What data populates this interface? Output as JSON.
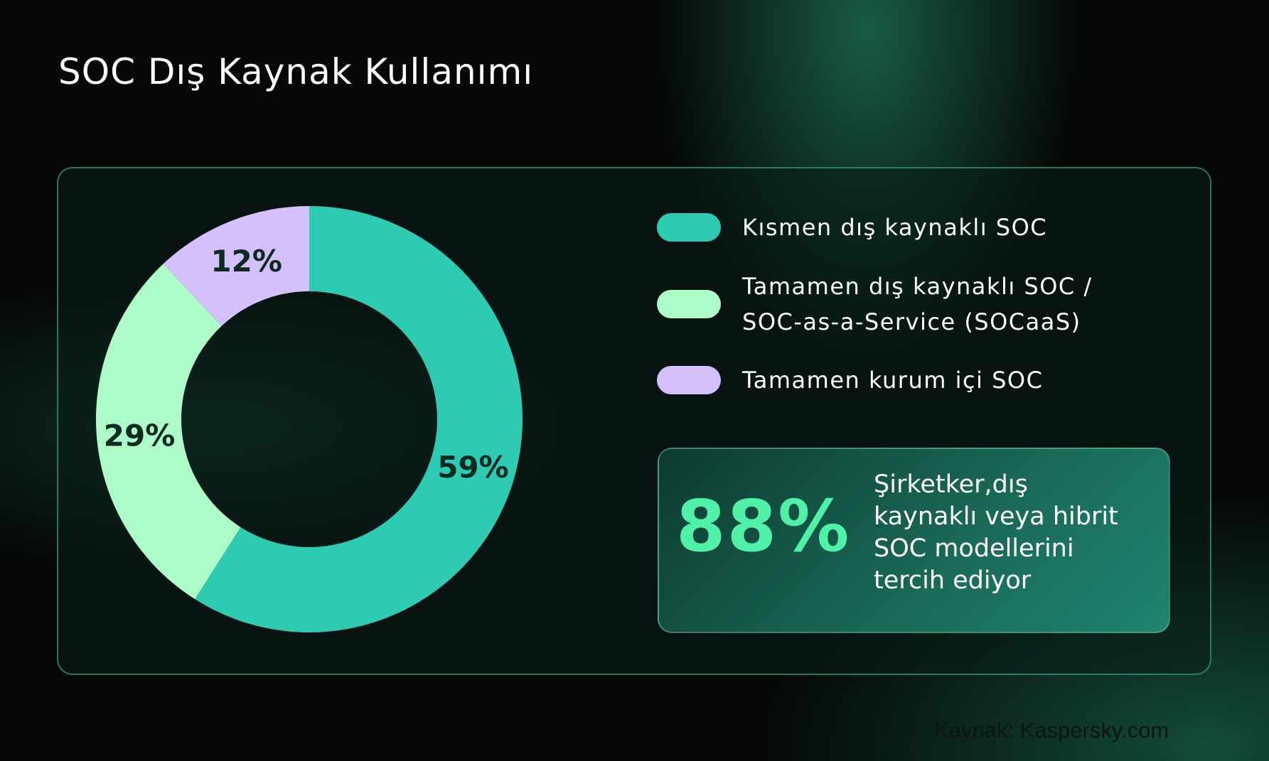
{
  "title": "SOC Dış Kaynak Kullanımı",
  "chart_data": {
    "type": "pie",
    "variant": "donut",
    "categories": [
      "Kısmen dış kaynaklı SOC",
      "Tamamen dış kaynaklı SOC / SOC-as-a-Service (SOCaaS)",
      "Tamamen kurum içi SOC"
    ],
    "values": [
      59,
      29,
      12
    ],
    "data_labels": [
      "59%",
      "29%",
      "12%"
    ],
    "colors": [
      "#2ccbb2",
      "#adfcc8",
      "#d4c0fb"
    ],
    "legend_position": "right"
  },
  "legend": [
    {
      "label": "Kısmen dış kaynaklı SOC",
      "color": "#2ccbb2"
    },
    {
      "label_line1": "Tamamen dış kaynaklı SOC /",
      "label_line2": "SOC-as-a-Service (SOCaaS)",
      "color": "#adfcc8"
    },
    {
      "label": "Tamamen kurum içi SOC",
      "color": "#d4c0fb"
    }
  ],
  "stat": {
    "value": "88%",
    "lines": [
      "Şirketker,dış",
      "kaynaklı veya hibrit",
      "SOC modellerini",
      "tercih ediyor"
    ]
  },
  "source": "Kaynak: Kaspersky.com"
}
